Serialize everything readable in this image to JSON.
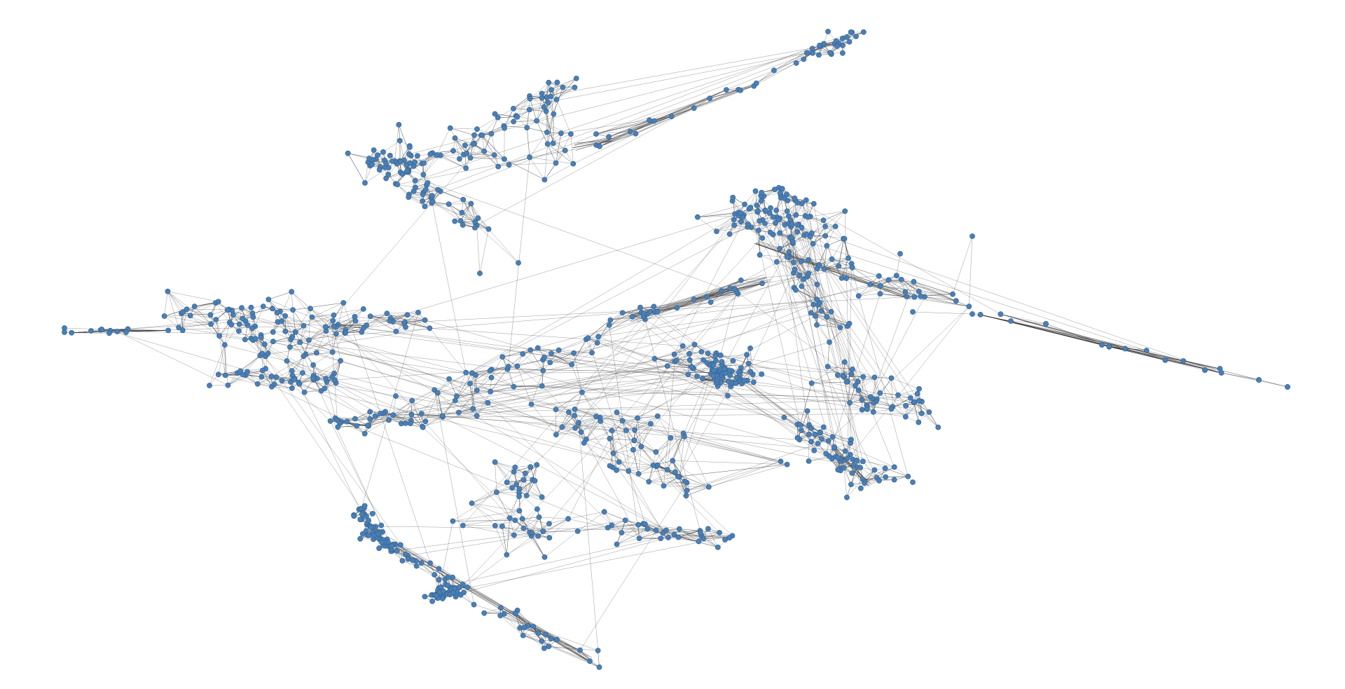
{
  "graph": {
    "node_color": "#4a7fb5",
    "edge_color": "#333333",
    "background": "#ffffff",
    "layout": "force-directed",
    "labels_shown": false,
    "clusters": [
      {
        "id": "top-hub"
      },
      {
        "id": "top-right-tail"
      },
      {
        "id": "left-cluster"
      },
      {
        "id": "left-tail"
      },
      {
        "id": "central-band"
      },
      {
        "id": "mid-cluster"
      },
      {
        "id": "right-upper-cluster"
      },
      {
        "id": "right-lower-cluster"
      },
      {
        "id": "right-tail"
      },
      {
        "id": "lower-sparse-cluster"
      },
      {
        "id": "bottom-diagonal-cluster"
      }
    ]
  }
}
